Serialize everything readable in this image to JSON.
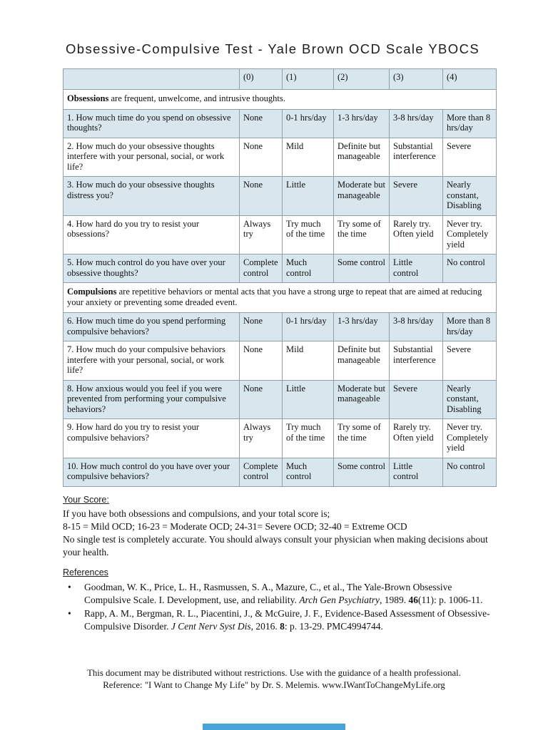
{
  "page": {
    "title": "Obsessive-Compulsive Test - Yale Brown OCD Scale YBOCS"
  },
  "colors": {
    "row_highlight": "#d8e6ee",
    "table_border": "#8e9fa7",
    "progress_bar": "#4aa4da"
  },
  "table": {
    "score_headers": [
      "(0)",
      "(1)",
      "(2)",
      "(3)",
      "(4)"
    ],
    "sections": [
      {
        "intro_bold": "Obsessions",
        "intro_rest": " are frequent, unwelcome, and intrusive thoughts.",
        "rows": [
          {
            "question": "1. How much time do you spend on obsessive thoughts?",
            "options": [
              "None",
              "0-1 hrs/day",
              "1-3 hrs/day",
              "3-8 hrs/day",
              "More than 8 hrs/day"
            ]
          },
          {
            "question": "2. How much do your obsessive thoughts interfere with your personal, social, or work life?",
            "options": [
              "None",
              "Mild",
              "Definite but manageable",
              "Substantial interference",
              "Severe"
            ]
          },
          {
            "question": "3. How much do your obsessive thoughts distress you?",
            "options": [
              "None",
              "Little",
              "Moderate but manageable",
              "Severe",
              "Nearly constant, Disabling"
            ]
          },
          {
            "question": "4. How hard do you try to resist your obsessions?",
            "options": [
              "Always try",
              "Try much of the time",
              "Try some of the time",
              "Rarely try. Often yield",
              "Never try. Completely yield"
            ]
          },
          {
            "question": "5. How much control do you have over your obsessive thoughts?",
            "options": [
              "Complete control",
              "Much control",
              "Some control",
              "Little control",
              "No control"
            ]
          }
        ]
      },
      {
        "intro_bold": "Compulsions",
        "intro_rest": " are repetitive behaviors or mental acts that you have a strong urge to repeat that are aimed at reducing your anxiety or preventing some dreaded event.",
        "rows": [
          {
            "question": "6. How much time do you spend performing compulsive behaviors?",
            "options": [
              "None",
              "0-1 hrs/day",
              "1-3 hrs/day",
              "3-8 hrs/day",
              "More than 8 hrs/day"
            ]
          },
          {
            "question": "7. How much do your compulsive behaviors interfere with your personal, social, or work life?",
            "options": [
              "None",
              "Mild",
              "Definite but manageable",
              "Substantial interference",
              "Severe"
            ]
          },
          {
            "question": "8. How anxious would you feel if you were prevented from performing your compulsive behaviors?",
            "options": [
              "None",
              "Little",
              "Moderate but manageable",
              "Severe",
              "Nearly constant, Disabling"
            ]
          },
          {
            "question": "9. How hard do you try to resist your compulsive behaviors?",
            "options": [
              "Always try",
              "Try much of the time",
              "Try some of the time",
              "Rarely try. Often yield",
              "Never try. Completely yield"
            ]
          },
          {
            "question": "10. How much control do you have over your compulsive behaviors?",
            "options": [
              "Complete control",
              "Much control",
              "Some control",
              "Little control",
              "No control"
            ]
          }
        ]
      }
    ]
  },
  "score": {
    "heading": "Your Score:",
    "line1": "If you have both obsessions and compulsions, and your total score is;",
    "line2": "8-15 = Mild OCD; 16-23 = Moderate OCD; 24-31= Severe OCD; 32-40 = Extreme OCD",
    "line3": "No single test is completely accurate. You should always consult your physician when making decisions about your health."
  },
  "references": {
    "heading": "References",
    "bullet_glyph": "•",
    "items": [
      {
        "parts": [
          {
            "text": "Goodman, W. K., Price, L. H., Rasmussen, S. A., Mazure, C., et al., The Yale-Brown Obsessive Compulsive Scale. I. Development, use, and reliability. ",
            "style": "normal"
          },
          {
            "text": "Arch Gen Psychiatry",
            "style": "italic"
          },
          {
            "text": ", 1989. ",
            "style": "normal"
          },
          {
            "text": "46",
            "style": "bold"
          },
          {
            "text": "(11): p. 1006-11.",
            "style": "normal"
          }
        ]
      },
      {
        "parts": [
          {
            "text": "Rapp, A. M., Bergman, R. L., Piacentini, J., & McGuire, J. F., Evidence-Based Assessment of Obsessive-Compulsive Disorder. ",
            "style": "normal"
          },
          {
            "text": "J Cent Nerv Syst Dis",
            "style": "italic"
          },
          {
            "text": ", 2016. ",
            "style": "normal"
          },
          {
            "text": "8",
            "style": "bold"
          },
          {
            "text": ": p. 13-29. PMC4994744.",
            "style": "normal"
          }
        ]
      }
    ]
  },
  "footer": {
    "line1": "This document may be distributed without restrictions. Use with the guidance of a health professional.",
    "line2": "Reference: \"I Want to Change My Life\" by Dr. S. Melemis.  www.IWantToChangeMyLife.org"
  }
}
